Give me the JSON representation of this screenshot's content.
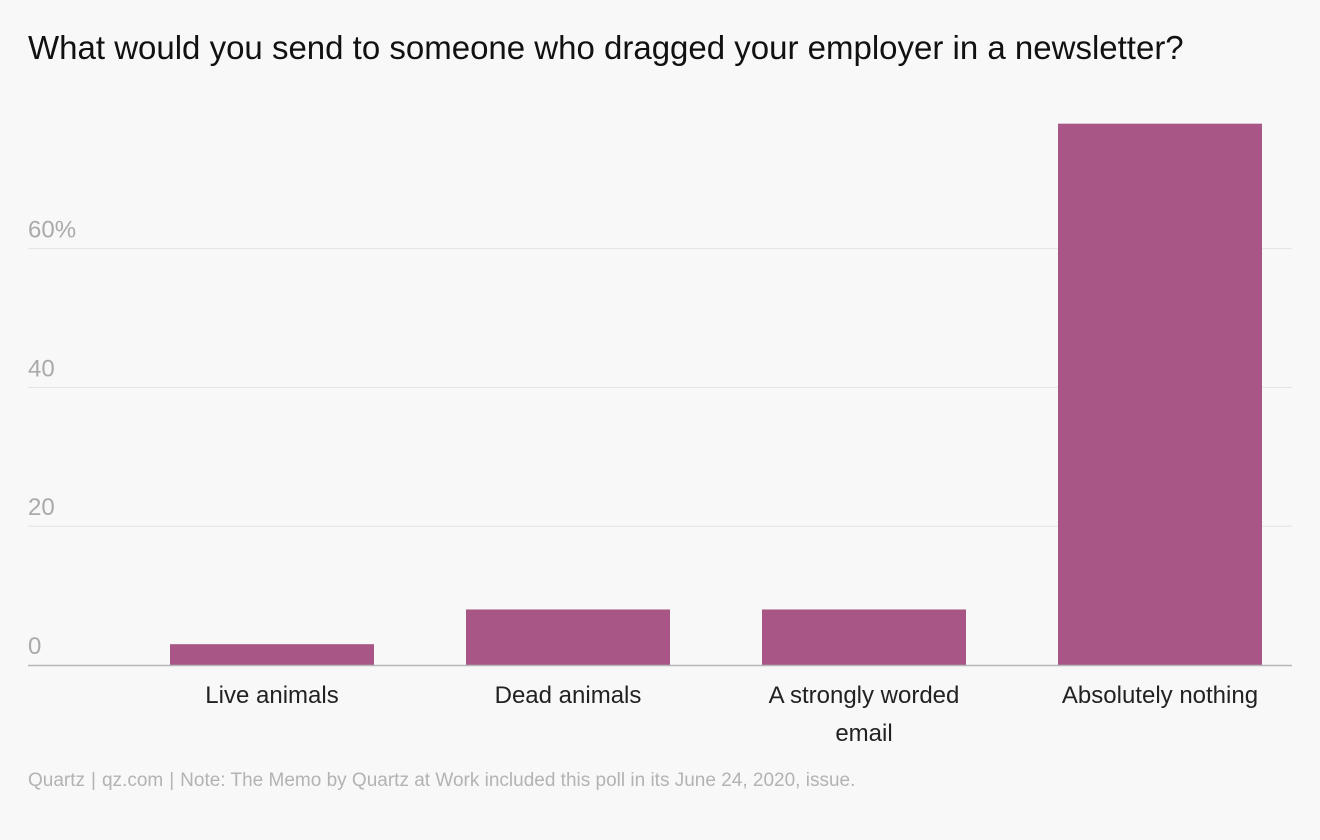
{
  "title": "What would you send to someone who dragged your employer in a newsletter?",
  "source": {
    "publisher": "Quartz",
    "site": "qz.com",
    "note": "Note: The Memo by Quartz at Work included this poll in its June 24, 2020, issue."
  },
  "colors": {
    "bar": "#a85686",
    "grid": "#e4e4e4",
    "baseline": "#b5b5b5",
    "tick_label": "#aaaaaa",
    "category_label": "#222222"
  },
  "chart_data": {
    "type": "bar",
    "categories": [
      "Live animals",
      "Dead animals",
      "A strongly worded email",
      "Absolutely nothing"
    ],
    "category_lines": [
      [
        "Live animals"
      ],
      [
        "Dead animals"
      ],
      [
        "A strongly worded",
        "email"
      ],
      [
        "Absolutely nothing"
      ]
    ],
    "values": [
      3,
      8,
      8,
      78
    ],
    "yticks": [
      0,
      20,
      40,
      60
    ],
    "ytick_labels": [
      "0",
      "20",
      "40",
      "60%"
    ],
    "ylim": [
      0,
      78
    ],
    "grid": true,
    "xlabel": "",
    "ylabel": ""
  }
}
